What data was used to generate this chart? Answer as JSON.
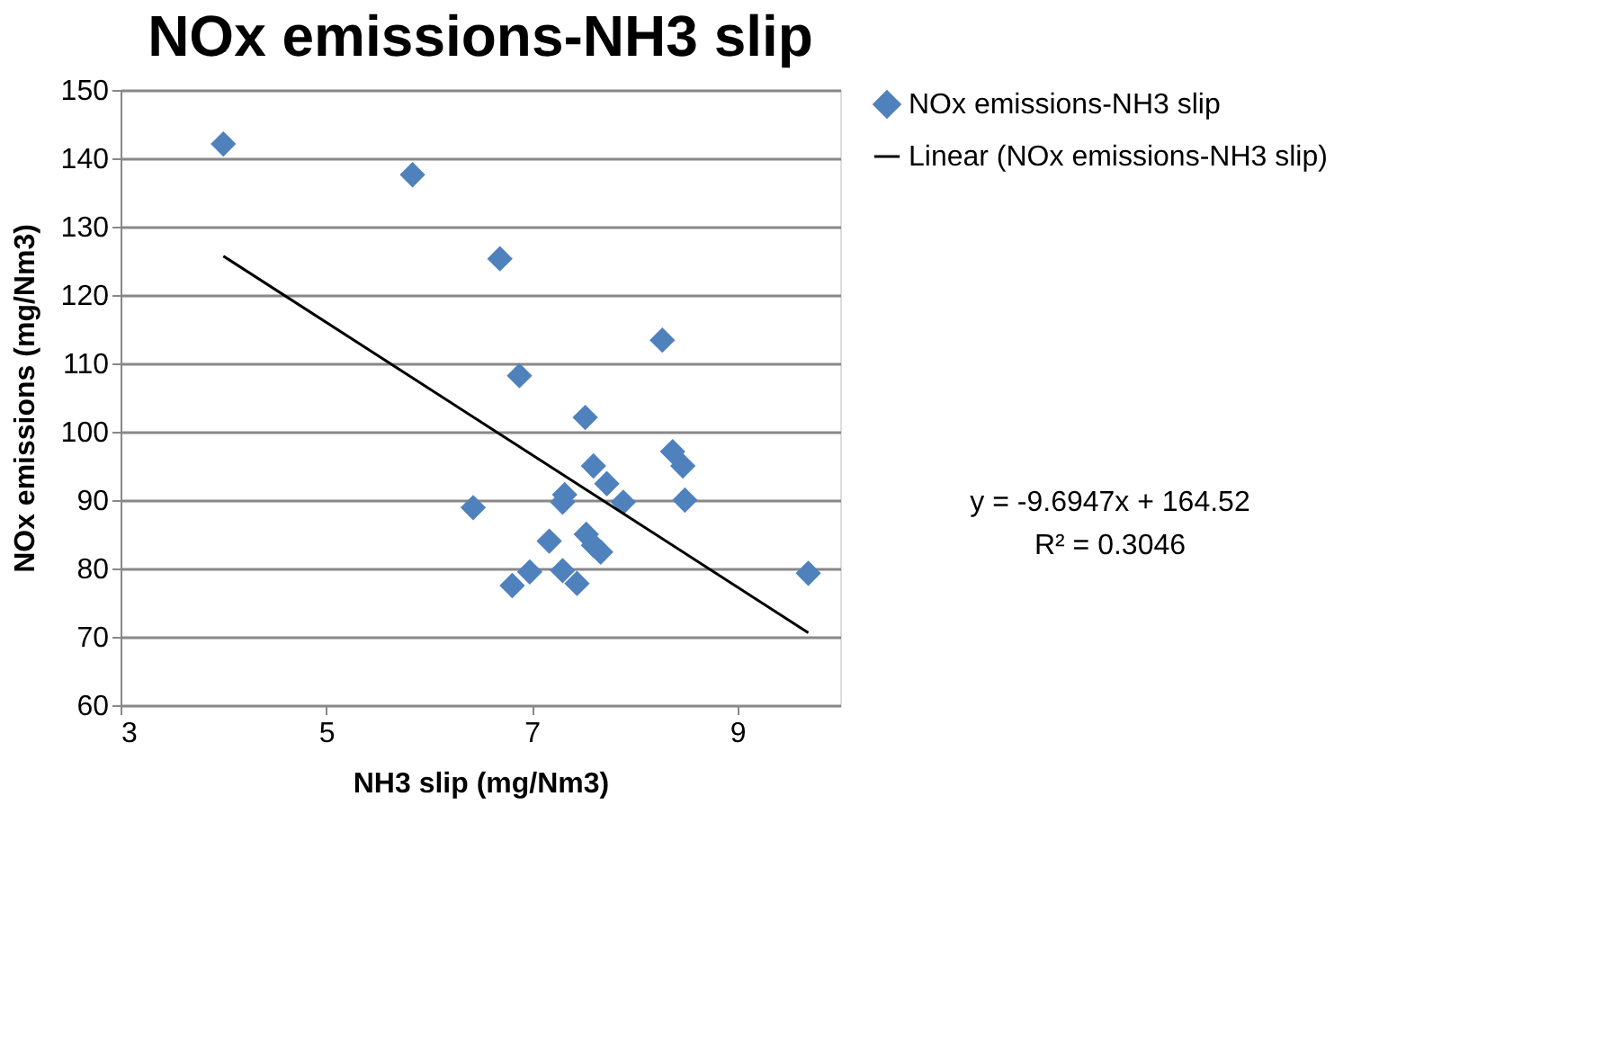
{
  "chart_data": {
    "type": "scatter",
    "title": "NOx emissions-NH3 slip",
    "xlabel": "NH3 slip (mg/Nm3)",
    "ylabel": "NOx emissions (mg/Nm3)",
    "xlim": [
      3,
      10
    ],
    "xticks": [
      3,
      5,
      7,
      9
    ],
    "ylim": [
      60,
      150
    ],
    "yticks": [
      60,
      70,
      80,
      90,
      100,
      110,
      120,
      130,
      140,
      150
    ],
    "grid": "y",
    "legend": "right",
    "series": [
      {
        "name": "NOx emissions-NH3 slip",
        "color": "#4f81bd",
        "marker": "diamond",
        "x": [
          4.0,
          5.84,
          6.69,
          8.27,
          6.88,
          7.52,
          8.37,
          8.47,
          7.6,
          7.73,
          7.89,
          8.49,
          6.43,
          7.3,
          7.32,
          7.53,
          7.6,
          7.67,
          7.17,
          7.3,
          6.98,
          6.81,
          7.44,
          9.69
        ],
        "values": [
          142.1,
          137.6,
          125.3,
          113.4,
          108.2,
          102.1,
          97.1,
          95,
          95,
          92.4,
          89.7,
          90,
          88.9,
          89.7,
          90.8,
          85,
          83.4,
          82.4,
          84,
          79.7,
          79.5,
          77.5,
          77.8,
          79.3
        ]
      },
      {
        "name": "Linear (NOx emissions-NH3 slip)",
        "type": "line",
        "color": "#000000",
        "x": [
          4.0,
          9.69
        ],
        "values": [
          125.7,
          70.6
        ]
      }
    ],
    "annotations": [
      "y = -9.6947x + 164.52",
      "R² = 0.3046"
    ]
  }
}
